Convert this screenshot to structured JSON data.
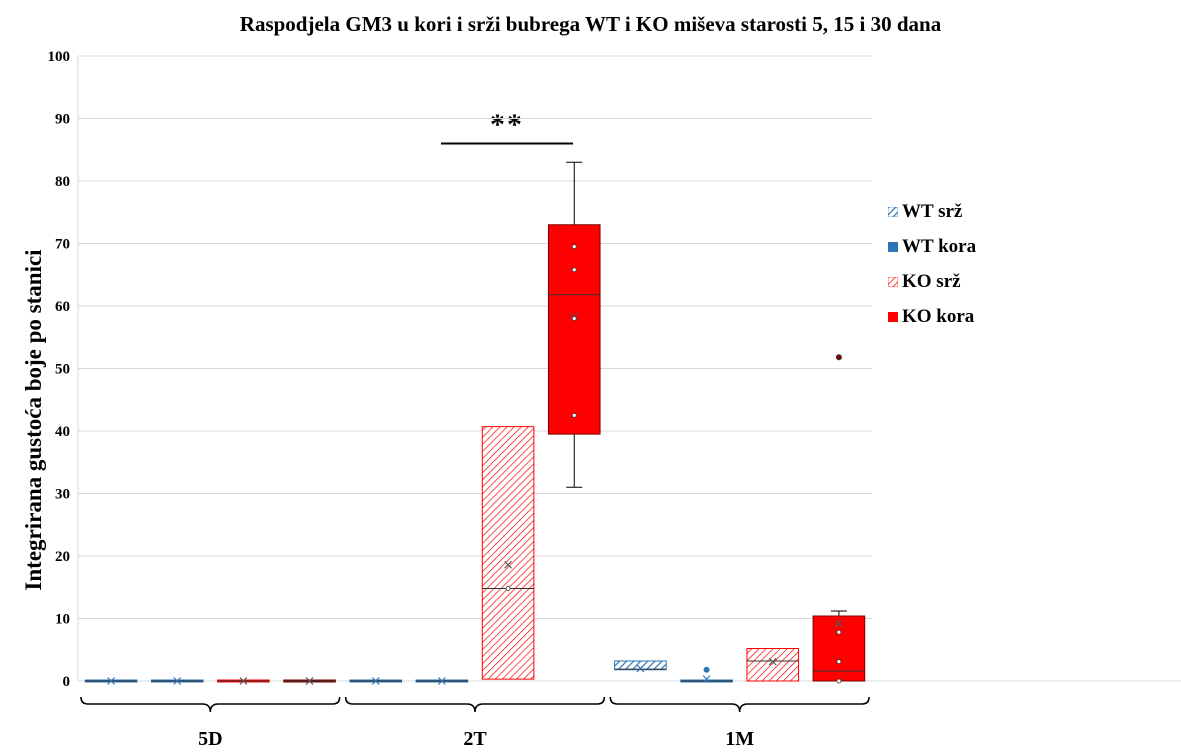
{
  "chart_data": {
    "type": "box",
    "title": "Raspodjela GM3 u kori i srži bubrega WT i KO miševa starosti 5, 15 i 30 dana",
    "ylabel": "Integrirana gustoća boje po stanici",
    "xlabel": "",
    "ylim": [
      0,
      100
    ],
    "yticks": [
      0,
      10,
      20,
      30,
      40,
      50,
      60,
      70,
      80,
      90,
      100
    ],
    "grid": true,
    "legend_position": "right",
    "categories": [
      "5D",
      "2T",
      "1M"
    ],
    "series": [
      {
        "name": "WT srž",
        "color": "#2E75B6",
        "pattern": "hatch",
        "boxes": [
          {
            "category": "5D",
            "min": 0,
            "q1": 0,
            "median": 0,
            "q3": 0,
            "max": 0,
            "mean": 0,
            "points": []
          },
          {
            "category": "2T",
            "min": 0,
            "q1": 0,
            "median": 0,
            "q3": 0,
            "max": 0,
            "mean": 0,
            "points": []
          },
          {
            "category": "1M",
            "min": 1.8,
            "q1": 1.8,
            "median": 1.9,
            "q3": 3.2,
            "max": 3.2,
            "mean": 2.0,
            "points": []
          }
        ]
      },
      {
        "name": "WT kora",
        "color": "#2E75B6",
        "pattern": "solid",
        "boxes": [
          {
            "category": "5D",
            "min": 0,
            "q1": 0,
            "median": 0,
            "q3": 0,
            "max": 0,
            "mean": 0,
            "points": []
          },
          {
            "category": "2T",
            "min": 0,
            "q1": 0,
            "median": 0,
            "q3": 0,
            "max": 0,
            "mean": 0,
            "points": []
          },
          {
            "category": "1M",
            "min": 0,
            "q1": 0,
            "median": 0,
            "q3": 0,
            "max": 0,
            "mean": 0.3,
            "points": [
              1.8
            ]
          }
        ]
      },
      {
        "name": "KO srž",
        "color": "#FF0000",
        "pattern": "hatch",
        "boxes": [
          {
            "category": "5D",
            "min": 0,
            "q1": 0,
            "median": 0,
            "q3": 0,
            "max": 0,
            "mean": 0,
            "points": []
          },
          {
            "category": "2T",
            "min": 0.3,
            "q1": 0.3,
            "median": 14.8,
            "q3": 40.7,
            "max": 40.7,
            "mean": 18.6,
            "points": [
              14.8
            ]
          },
          {
            "category": "1M",
            "min": 0,
            "q1": 0,
            "median": 3.2,
            "q3": 5.2,
            "max": 5.2,
            "mean": 3.1,
            "points": []
          }
        ]
      },
      {
        "name": "KO kora",
        "color": "#FF0000",
        "pattern": "solid",
        "boxes": [
          {
            "category": "5D",
            "min": 0,
            "q1": 0,
            "median": 0,
            "q3": 0,
            "max": 0,
            "mean": 0,
            "points": []
          },
          {
            "category": "2T",
            "min": 31,
            "q1": 39.5,
            "median": 61.8,
            "q3": 73,
            "max": 83,
            "mean": 58.3,
            "points": [
              69.5,
              65.8,
              58.0,
              42.5
            ]
          },
          {
            "category": "1M",
            "min": 0,
            "q1": 0,
            "median": 1.6,
            "q3": 10.4,
            "max": 11.2,
            "mean": 9.2,
            "points": [
              51.8,
              7.8,
              3.1,
              0
            ]
          }
        ]
      }
    ],
    "annotations": [
      {
        "text": "**",
        "between": [
          "2T:KO srž",
          "2T:KO kora"
        ],
        "y": 86
      }
    ]
  }
}
